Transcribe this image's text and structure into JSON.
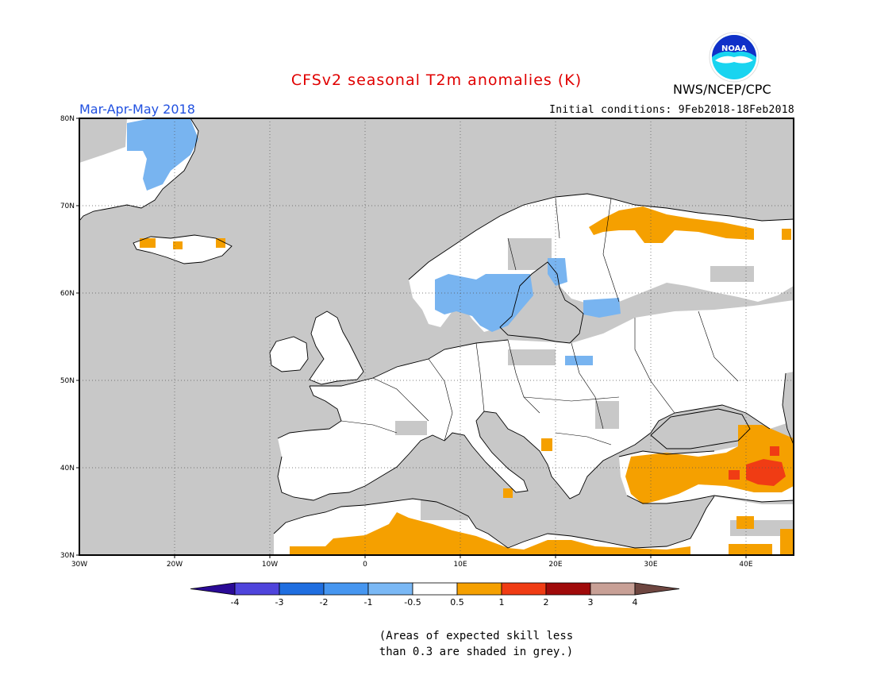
{
  "title": "CFSv2 seasonal T2m anomalies (K)",
  "period": "Mar-Apr-May 2018",
  "initial_conditions": "Initial conditions: 9Feb2018-18Feb2018",
  "agency": "NWS/NCEP/CPC",
  "logo": {
    "text": "NOAA",
    "icon": "noaa-logo-icon"
  },
  "map": {
    "region": "Europe",
    "lon_range": [
      -30,
      45
    ],
    "lat_range": [
      30,
      80
    ],
    "lat_ticks": [
      "80N",
      "70N",
      "60N",
      "50N",
      "40N",
      "30N"
    ],
    "lon_ticks": [
      "30W",
      "20W",
      "10W",
      "0",
      "10E",
      "20E",
      "30E",
      "40E"
    ],
    "gridlines": "dotted",
    "colors": {
      "no_skill_grey": "#c8c8c8",
      "land_white": "#ffffff",
      "coast": "#000000"
    },
    "anomaly_regions": [
      {
        "name": "Greenland east coast",
        "category": "-1 to -0.5",
        "color": "#78b4f0"
      },
      {
        "name": "Southern Scandinavia / Baltic",
        "category": "-1 to -0.5",
        "color": "#78b4f0"
      },
      {
        "name": "Northern Fennoscandia",
        "category": "0.5 to 1",
        "color": "#f5a000"
      },
      {
        "name": "Turkey / Caucasus",
        "category": "0.5 to 1",
        "color": "#f5a000"
      },
      {
        "name": "Eastern Turkey",
        "category": "1 to 2",
        "color": "#f03c14"
      },
      {
        "name": "North Africa",
        "category": "0.5 to 1",
        "color": "#f5a000"
      },
      {
        "name": "Iceland edges",
        "category": "0.5 to 1",
        "color": "#f5a000"
      }
    ]
  },
  "legend": {
    "labels": [
      "-4",
      "-3",
      "-2",
      "-1",
      "-0.5",
      "0.5",
      "1",
      "2",
      "3",
      "4"
    ],
    "colors": [
      "#2a0a96",
      "#4f44dc",
      "#1f6ee0",
      "#4696f0",
      "#7ab8f5",
      "#ffffff",
      "#f5a000",
      "#f03c14",
      "#a00a0a",
      "#c8a096",
      "#6e4640"
    ]
  },
  "note": {
    "line1": "(Areas of expected skill less",
    "line2": "than 0.3 are shaded in grey.)"
  }
}
